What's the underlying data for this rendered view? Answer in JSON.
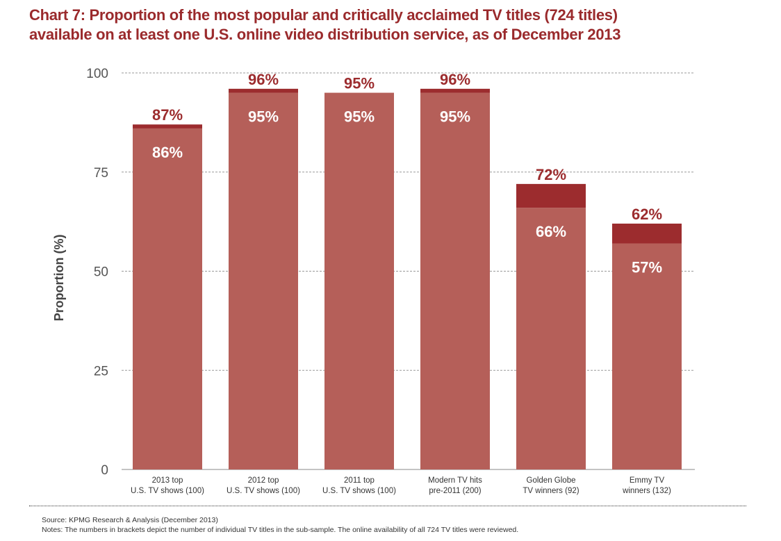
{
  "title_lines": [
    "Chart 7: Proportion of the most popular and critically acclaimed TV titles (724 titles)",
    "available on at least one U.S. online video distribution service, as of December 2013"
  ],
  "colors": {
    "base": "#b55f59",
    "top": "#9c2c2e",
    "title": "#9a2a2c",
    "grid": "#999999",
    "axis_text": "#555555"
  },
  "chart_data": {
    "type": "bar",
    "stacked": true,
    "title": "Chart 7: Proportion of the most popular and critically acclaimed TV titles (724 titles) available on at least one U.S. online video distribution service, as of December 2013",
    "ylabel": "Proportion (%)",
    "xlabel": "",
    "ylim": [
      0,
      100
    ],
    "yticks": [
      0,
      25,
      50,
      75,
      100
    ],
    "grid": true,
    "categories": [
      [
        "2013 top",
        "U.S. TV shows (100)"
      ],
      [
        "2012 top",
        "U.S. TV shows (100)"
      ],
      [
        "2011 top",
        "U.S. TV shows (100)"
      ],
      [
        "Modern TV hits",
        "pre-2011 (200)"
      ],
      [
        "Golden Globe",
        "TV winners (92)"
      ],
      [
        "Emmy TV",
        "winners (132)"
      ]
    ],
    "base_values": [
      86,
      95,
      95,
      95,
      66,
      57
    ],
    "total_values": [
      87,
      96,
      95,
      96,
      72,
      62
    ],
    "base_labels": [
      "86%",
      "95%",
      "95%",
      "95%",
      "66%",
      "57%"
    ],
    "total_labels": [
      "87%",
      "96%",
      "95%",
      "96%",
      "72%",
      "62%"
    ]
  },
  "footer": {
    "source": "Source: KPMG Research & Analysis (December 2013)",
    "notes": "Notes:  The numbers in brackets depict the number of individual TV titles in the sub-sample. The online availability of all 724 TV titles were reviewed."
  }
}
